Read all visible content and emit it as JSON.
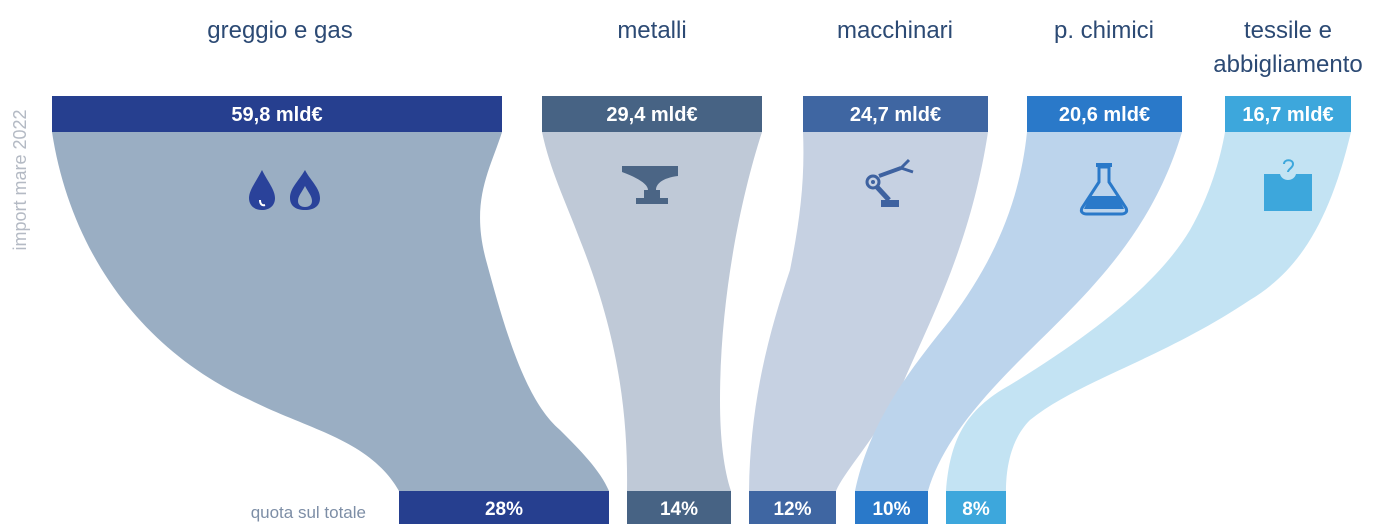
{
  "chart_data": {
    "type": "sankey",
    "side_label": "import mare 2022",
    "bottom_caption": "quota sul totale",
    "items": [
      {
        "category_lines": [
          "greggio e gas"
        ],
        "value_label": "59,8 mld€",
        "value": 59.8,
        "share_label": "28%",
        "share": 28,
        "bar_color": "#263f8f",
        "flow_color": "#9aaec3",
        "icon": "oil-gas-icon",
        "icon_color": "#2a429a"
      },
      {
        "category_lines": [
          "metalli"
        ],
        "value_label": "29,4 mld€",
        "value": 29.4,
        "share_label": "14%",
        "share": 14,
        "bar_color": "#476384",
        "flow_color": "#bfc9d7",
        "icon": "anvil-icon",
        "icon_color": "#4b6585"
      },
      {
        "category_lines": [
          "macchinari"
        ],
        "value_label": "24,7 mld€",
        "value": 24.7,
        "share_label": "12%",
        "share": 12,
        "bar_color": "#3f66a2",
        "flow_color": "#c6d1e2",
        "icon": "robot-arm-icon",
        "icon_color": "#3e62a0"
      },
      {
        "category_lines": [
          "p. chimici"
        ],
        "value_label": "20,6 mld€",
        "value": 20.6,
        "share_label": "10%",
        "share": 10,
        "bar_color": "#2a79c9",
        "flow_color": "#bcd4ec",
        "icon": "flask-icon",
        "icon_color": "#2a79c9"
      },
      {
        "category_lines": [
          "tessile e",
          "abbigliamento"
        ],
        "value_label": "16,7 mld€",
        "value": 16.7,
        "share_label": "8%",
        "share": 8,
        "bar_color": "#3da7dc",
        "flow_color": "#c3e3f3",
        "icon": "shirt-tag-icon",
        "icon_color": "#3da7dc"
      }
    ]
  }
}
